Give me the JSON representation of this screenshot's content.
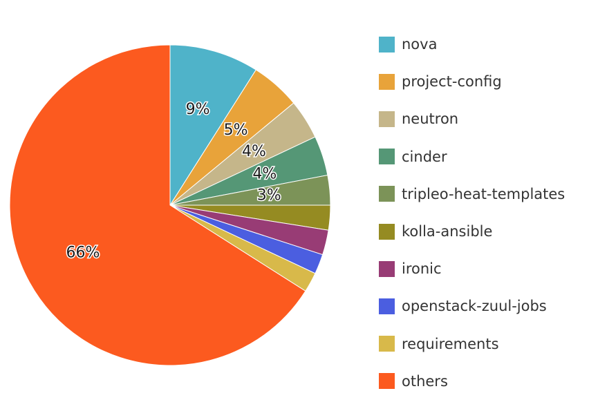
{
  "chart_data": {
    "type": "pie",
    "categories": [
      "nova",
      "project-config",
      "neutron",
      "cinder",
      "tripleo-heat-templates",
      "kolla-ansible",
      "ironic",
      "openstack-zuul-jobs",
      "requirements",
      "others"
    ],
    "values": [
      9,
      5,
      4,
      4,
      3,
      2.5,
      2.5,
      2,
      2,
      66
    ],
    "data_labels": [
      "9%",
      "5%",
      "4%",
      "4%",
      "3%",
      "",
      "",
      "",
      "",
      "66%"
    ],
    "colors": [
      "#4fb3c9",
      "#e8a33a",
      "#c5b68a",
      "#559776",
      "#7c9358",
      "#958b22",
      "#983c75",
      "#4b5ee0",
      "#d8b94a",
      "#fc5a1f"
    ],
    "start_angle_deg": 90,
    "direction": "clockwise",
    "legend_position": "right"
  }
}
